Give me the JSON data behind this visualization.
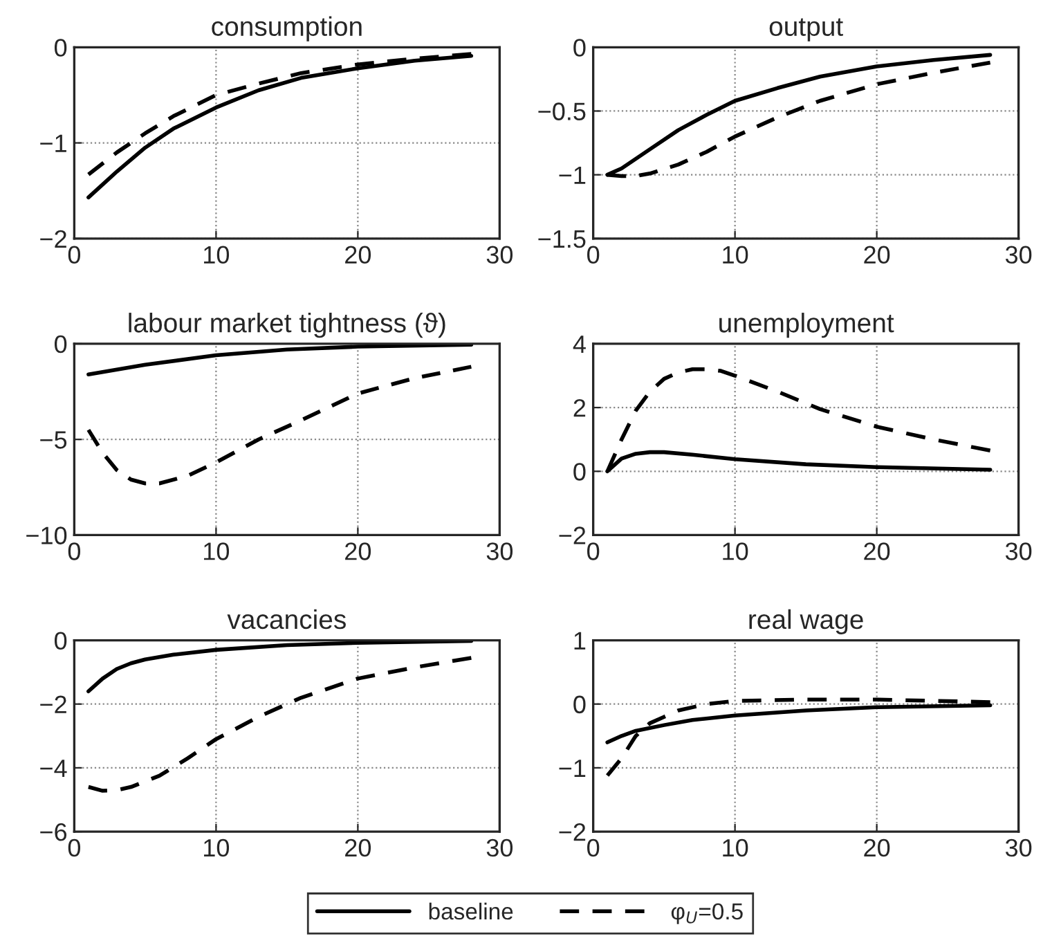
{
  "chart_data": [
    {
      "type": "line",
      "title": "consumption",
      "xlim": [
        0,
        30
      ],
      "xticks": [
        0,
        10,
        20,
        30
      ],
      "ylim": [
        -2,
        0
      ],
      "yticks": [
        -2,
        -1,
        0
      ],
      "grid": true,
      "legend": "bottom",
      "series": [
        {
          "name": "baseline",
          "color": "#000000",
          "line_style": "solid",
          "x": [
            1,
            3,
            5,
            7,
            10,
            13,
            16,
            20,
            24,
            28
          ],
          "values": [
            -1.57,
            -1.3,
            -1.05,
            -0.85,
            -0.63,
            -0.45,
            -0.32,
            -0.22,
            -0.14,
            -0.09
          ]
        },
        {
          "name": "φ$_{U}$=0.5",
          "color": "#000000",
          "line_style": "dashed",
          "x": [
            1,
            3,
            5,
            7,
            10,
            13,
            16,
            20,
            24,
            28
          ],
          "values": [
            -1.33,
            -1.1,
            -0.9,
            -0.72,
            -0.5,
            -0.38,
            -0.27,
            -0.18,
            -0.12,
            -0.07
          ]
        }
      ]
    },
    {
      "type": "line",
      "title": "output",
      "xlim": [
        0,
        30
      ],
      "xticks": [
        0,
        10,
        20,
        30
      ],
      "ylim": [
        -1.5,
        0
      ],
      "yticks": [
        -1.5,
        -1,
        -0.5,
        0
      ],
      "grid": true,
      "series": [
        {
          "color": "#000000",
          "line_style": "solid",
          "x": [
            1,
            2,
            4,
            6,
            8,
            10,
            13,
            16,
            20,
            24,
            28
          ],
          "values": [
            -1.0,
            -0.95,
            -0.8,
            -0.65,
            -0.53,
            -0.42,
            -0.32,
            -0.23,
            -0.15,
            -0.1,
            -0.06
          ]
        },
        {
          "color": "#000000",
          "line_style": "dashed",
          "x": [
            1,
            2,
            3,
            4,
            6,
            8,
            10,
            13,
            16,
            20,
            24,
            28
          ],
          "values": [
            -1.0,
            -1.01,
            -1.01,
            -0.99,
            -0.92,
            -0.82,
            -0.7,
            -0.55,
            -0.42,
            -0.29,
            -0.2,
            -0.12
          ]
        }
      ]
    },
    {
      "type": "line",
      "title": "labour market tightness (ϑ)",
      "xlim": [
        0,
        30
      ],
      "xticks": [
        0,
        10,
        20,
        30
      ],
      "ylim": [
        -10,
        0
      ],
      "yticks": [
        -10,
        -5,
        0
      ],
      "grid": true,
      "series": [
        {
          "color": "#000000",
          "line_style": "solid",
          "x": [
            1,
            5,
            10,
            15,
            20,
            28
          ],
          "values": [
            -1.6,
            -1.1,
            -0.6,
            -0.3,
            -0.15,
            -0.05
          ]
        },
        {
          "color": "#000000",
          "line_style": "dashed",
          "x": [
            1,
            2,
            3,
            4,
            5,
            6,
            8,
            10,
            13,
            16,
            20,
            24,
            28
          ],
          "values": [
            -4.5,
            -5.7,
            -6.6,
            -7.1,
            -7.3,
            -7.3,
            -6.9,
            -6.2,
            -5.0,
            -4.0,
            -2.6,
            -1.8,
            -1.2
          ]
        }
      ]
    },
    {
      "type": "line",
      "title": "unemployment",
      "xlim": [
        0,
        30
      ],
      "xticks": [
        0,
        10,
        20,
        30
      ],
      "ylim": [
        -2,
        4
      ],
      "yticks": [
        -2,
        0,
        2,
        4
      ],
      "grid": true,
      "series": [
        {
          "color": "#000000",
          "line_style": "solid",
          "x": [
            1,
            2,
            3,
            4,
            5,
            7,
            10,
            15,
            20,
            28
          ],
          "values": [
            0.0,
            0.4,
            0.55,
            0.6,
            0.6,
            0.52,
            0.38,
            0.22,
            0.13,
            0.05
          ]
        },
        {
          "color": "#000000",
          "line_style": "dashed",
          "x": [
            1,
            2,
            3,
            4,
            5,
            6,
            7,
            8,
            9,
            10,
            13,
            16,
            20,
            24,
            28
          ],
          "values": [
            0.0,
            1.0,
            1.9,
            2.5,
            2.9,
            3.1,
            3.2,
            3.2,
            3.15,
            3.0,
            2.5,
            1.95,
            1.4,
            1.0,
            0.65
          ]
        }
      ]
    },
    {
      "type": "line",
      "title": "vacancies",
      "xlim": [
        0,
        30
      ],
      "xticks": [
        0,
        10,
        20,
        30
      ],
      "ylim": [
        -6,
        0
      ],
      "yticks": [
        -6,
        -4,
        -2,
        0
      ],
      "grid": true,
      "series": [
        {
          "color": "#000000",
          "line_style": "solid",
          "x": [
            1,
            2,
            3,
            4,
            5,
            7,
            10,
            15,
            20,
            28
          ],
          "values": [
            -1.6,
            -1.2,
            -0.9,
            -0.72,
            -0.6,
            -0.45,
            -0.3,
            -0.15,
            -0.08,
            -0.02
          ]
        },
        {
          "color": "#000000",
          "line_style": "dashed",
          "x": [
            1,
            2,
            3,
            4,
            6,
            8,
            10,
            13,
            16,
            20,
            24,
            28
          ],
          "values": [
            -4.6,
            -4.72,
            -4.7,
            -4.6,
            -4.25,
            -3.7,
            -3.1,
            -2.4,
            -1.8,
            -1.2,
            -0.85,
            -0.55
          ]
        }
      ]
    },
    {
      "type": "line",
      "title": "real wage",
      "xlim": [
        0,
        30
      ],
      "xticks": [
        0,
        10,
        20,
        30
      ],
      "ylim": [
        -2,
        1
      ],
      "yticks": [
        -2,
        -1,
        0,
        1
      ],
      "grid": true,
      "series": [
        {
          "color": "#000000",
          "line_style": "solid",
          "x": [
            1,
            2,
            3,
            5,
            7,
            10,
            15,
            20,
            28
          ],
          "values": [
            -0.6,
            -0.5,
            -0.42,
            -0.33,
            -0.25,
            -0.18,
            -0.1,
            -0.05,
            -0.02
          ]
        },
        {
          "color": "#000000",
          "line_style": "dashed",
          "x": [
            1,
            2,
            3,
            4,
            5,
            6,
            8,
            10,
            15,
            20,
            28
          ],
          "values": [
            -1.12,
            -0.85,
            -0.5,
            -0.3,
            -0.2,
            -0.1,
            0.0,
            0.05,
            0.07,
            0.07,
            0.03
          ]
        }
      ]
    }
  ]
}
